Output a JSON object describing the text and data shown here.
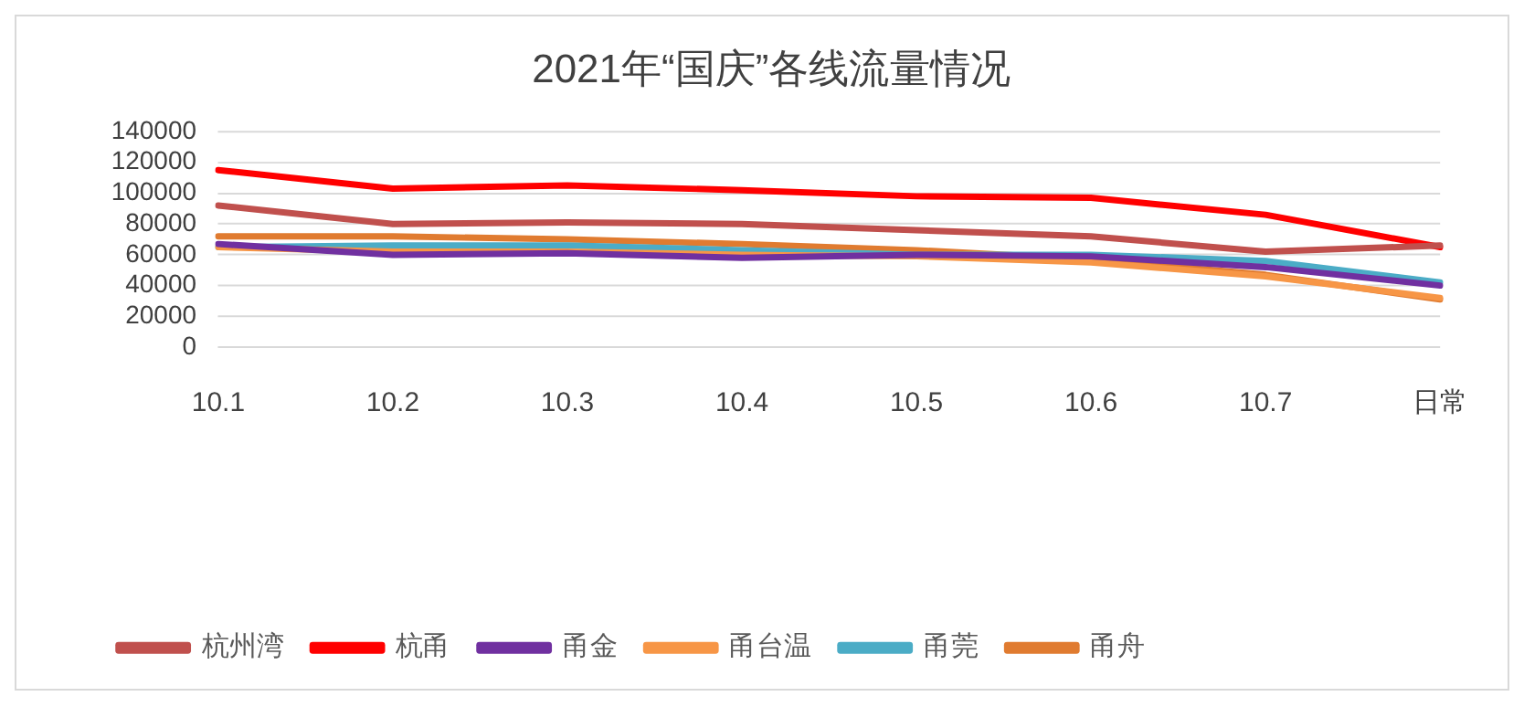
{
  "chart_data": {
    "type": "line",
    "title": "2021年“国庆”各线流量情况",
    "categories": [
      "10.1",
      "10.2",
      "10.3",
      "10.4",
      "10.5",
      "10.6",
      "10.7",
      "日常"
    ],
    "series": [
      {
        "name": "杭州湾",
        "color": "#c0504d",
        "values": [
          92000,
          80000,
          81000,
          80000,
          76000,
          72000,
          62000,
          66000
        ]
      },
      {
        "name": "杭甬",
        "color": "#ff0000",
        "values": [
          115000,
          103000,
          105000,
          102000,
          98000,
          97000,
          86000,
          65000
        ]
      },
      {
        "name": "甬金",
        "color": "#7030a0",
        "values": [
          67000,
          60000,
          61000,
          58000,
          60000,
          59000,
          52000,
          40000
        ]
      },
      {
        "name": "甬台温",
        "color": "#f79646",
        "values": [
          65000,
          62000,
          62000,
          60000,
          59000,
          55000,
          46000,
          32000
        ]
      },
      {
        "name": "甬莞",
        "color": "#4bacc6",
        "values": [
          65000,
          66000,
          66000,
          63000,
          60000,
          60000,
          56000,
          42000
        ]
      },
      {
        "name": "甬舟",
        "color": "#e07b30",
        "values": [
          72000,
          72000,
          70000,
          67000,
          63000,
          57000,
          47000,
          31000
        ]
      }
    ],
    "ylim": [
      0,
      140000
    ],
    "yticks": [
      0,
      20000,
      40000,
      60000,
      80000,
      100000,
      120000,
      140000
    ],
    "grid": "y",
    "legend": "bottom",
    "marker": "none",
    "line_style": "solid"
  }
}
